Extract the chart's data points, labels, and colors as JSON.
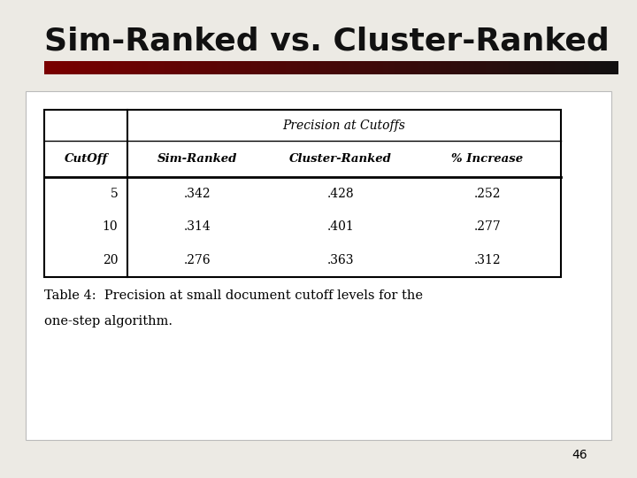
{
  "title": "Sim-Ranked vs. Cluster-Ranked",
  "slide_bg": "#eceae4",
  "title_color": "#111111",
  "title_fontsize": 26,
  "bar_color_left": "#7a0000",
  "bar_color_right": "#111111",
  "table_header_row1": [
    "",
    "Precision at Cutoffs",
    "",
    ""
  ],
  "table_header_row2": [
    "CutOff",
    "Sim-Ranked",
    "Cluster-Ranked",
    "% Increase"
  ],
  "table_data": [
    [
      "5",
      ".342",
      ".428",
      ".252"
    ],
    [
      "10",
      ".314",
      ".401",
      ".277"
    ],
    [
      "20",
      ".276",
      ".363",
      ".312"
    ]
  ],
  "caption_line1": "Table 4:  Precision at small document cutoff levels for the",
  "caption_line2": "one-step algorithm.",
  "caption_fontsize": 10.5,
  "page_number": "46",
  "table_bg": "#ffffff",
  "table_border_color": "#000000"
}
